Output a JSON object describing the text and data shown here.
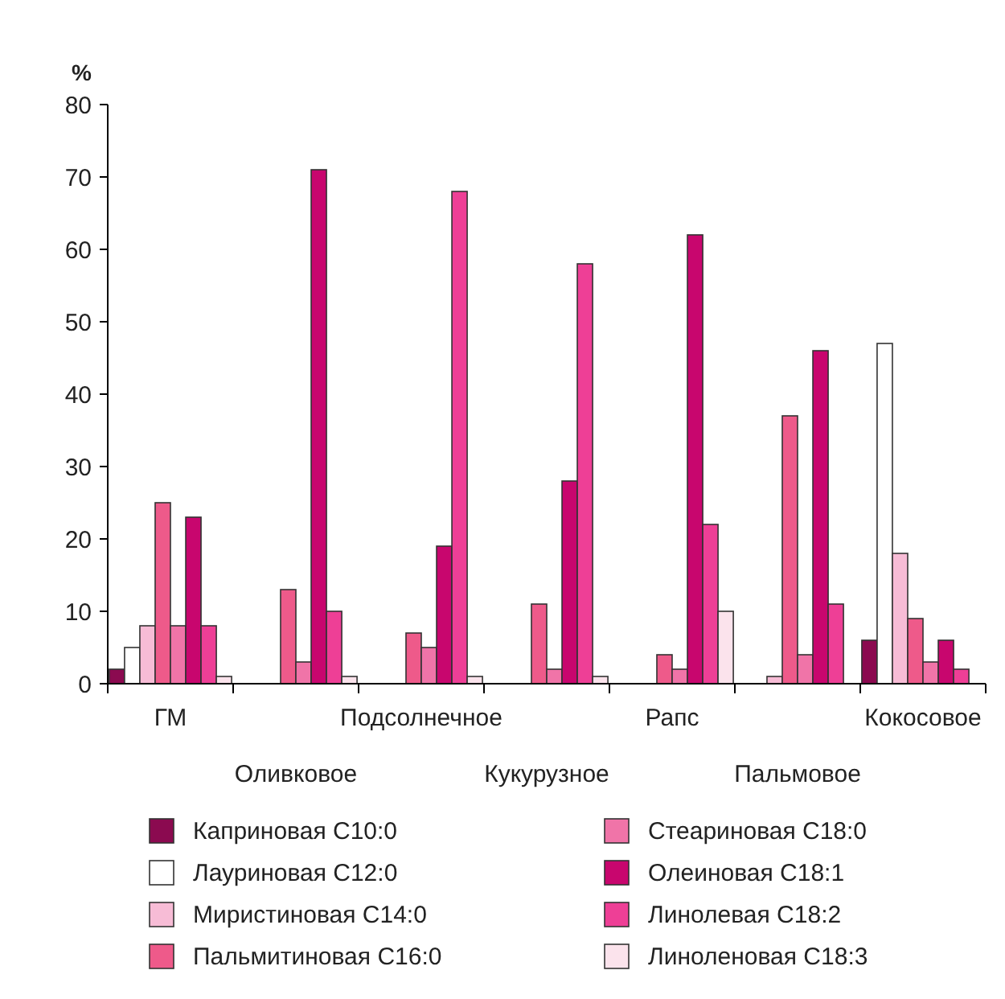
{
  "chart_data": {
    "type": "bar",
    "ylabel": "%",
    "categories": [
      "ГМ",
      "Оливковое",
      "Подсолнечное",
      "Кукурузное",
      "Рапс",
      "Пальмовое",
      "Кокосовое"
    ],
    "ylim": [
      0,
      80
    ],
    "yticks": [
      0,
      10,
      20,
      30,
      40,
      50,
      60,
      70,
      80
    ],
    "grid": false,
    "legend": "bottom",
    "series": [
      {
        "name": "Каприновая С10:0",
        "color": "#8b0a50",
        "values": [
          2,
          0,
          0,
          0,
          0,
          0,
          6
        ]
      },
      {
        "name": "Лауриновая С12:0",
        "color": "#ffffff",
        "values": [
          5,
          0,
          0,
          0,
          0,
          0,
          47
        ]
      },
      {
        "name": "Миристиновая С14:0",
        "color": "#f7bcd6",
        "values": [
          8,
          0,
          0,
          0,
          0,
          1,
          18
        ]
      },
      {
        "name": "Пальмитиновая С16:0",
        "color": "#ee5a8a",
        "values": [
          25,
          13,
          7,
          11,
          4,
          37,
          9
        ]
      },
      {
        "name": "Стеариновая С18:0",
        "color": "#f074a8",
        "values": [
          8,
          3,
          5,
          2,
          2,
          4,
          3
        ]
      },
      {
        "name": "Олеиновая С18:1",
        "color": "#c8066e",
        "values": [
          23,
          71,
          19,
          28,
          62,
          46,
          6
        ]
      },
      {
        "name": "Линолевая С18:2",
        "color": "#ee3f96",
        "values": [
          8,
          10,
          68,
          58,
          22,
          11,
          2
        ]
      },
      {
        "name": "Линоленовая С18:3",
        "color": "#fbe3ec",
        "values": [
          1,
          1,
          1,
          1,
          10,
          0,
          0
        ]
      }
    ]
  }
}
